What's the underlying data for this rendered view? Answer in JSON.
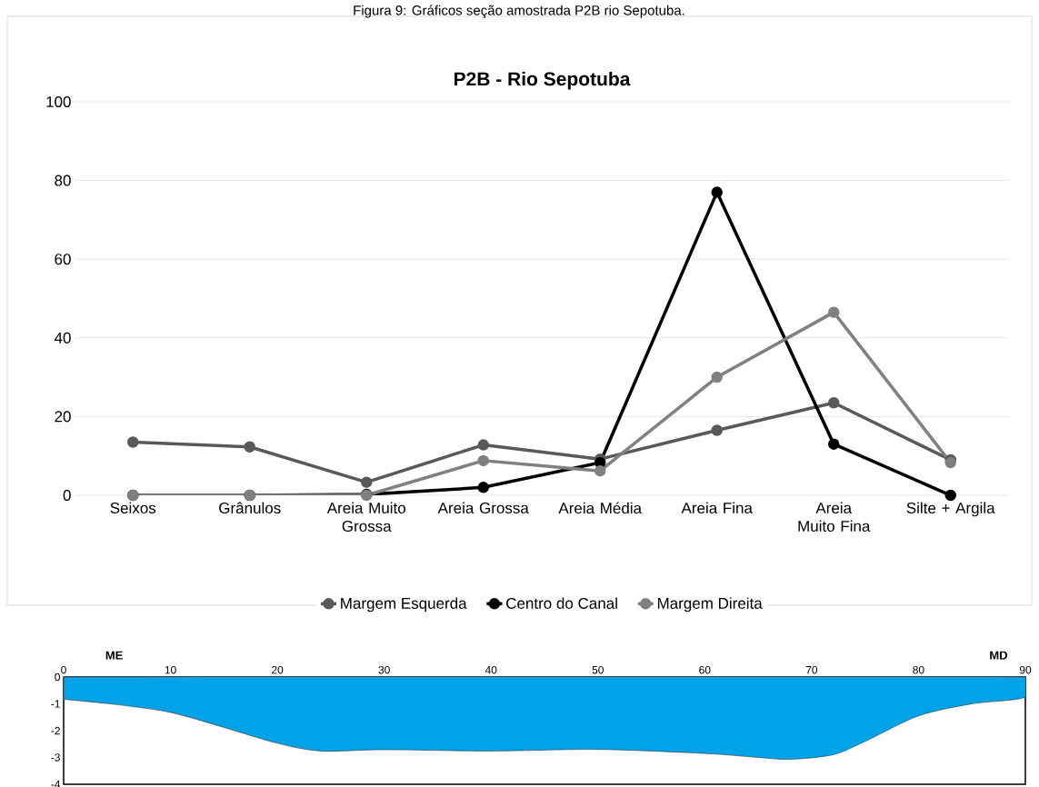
{
  "chart_data": [
    {
      "type": "line",
      "title": "P2B - Rio Sepotuba",
      "annotations": [
        "Figura 9: Gráficos seção amostrada P2B rio Sepotuba."
      ],
      "categories": [
        "Seixos",
        "Grânulos",
        "Areia Muito Grossa",
        "Areia Grossa",
        "Areia Média",
        "Areia Fina",
        "Areia Muito Fina",
        "Silte + Argila"
      ],
      "series": [
        {
          "name": "Margem Esquerda",
          "color": "#595959",
          "values": [
            13.5,
            12.3,
            3.3,
            12.8,
            9.2,
            16.5,
            23.5,
            9.0
          ]
        },
        {
          "name": "Centro do Canal",
          "color": "#000000",
          "values": [
            0,
            0,
            0.2,
            2.0,
            8.3,
            77,
            13,
            0
          ]
        },
        {
          "name": "Margem Direita",
          "color": "#808080",
          "values": [
            0,
            0,
            0,
            8.8,
            6.2,
            30,
            46.5,
            8.3
          ]
        }
      ],
      "ylim": [
        0,
        100
      ],
      "yticks": [
        0,
        20,
        40,
        60,
        80,
        100
      ],
      "grid": "y",
      "legend": "bottom",
      "marker": "circle",
      "line_style": "solid"
    },
    {
      "type": "area",
      "annotations": [
        "ME",
        "MD"
      ],
      "x": [
        0,
        5,
        10,
        15,
        20,
        24,
        30,
        40,
        50,
        60,
        65,
        68,
        72,
        75,
        80,
        85,
        90
      ],
      "values": [
        -0.83,
        -1.03,
        -1.32,
        -1.88,
        -2.47,
        -2.76,
        -2.71,
        -2.76,
        -2.7,
        -2.85,
        -3.0,
        -3.07,
        -2.9,
        -2.4,
        -1.45,
        -1.0,
        -0.75
      ],
      "color": "#00a2e8",
      "xlim": [
        0,
        90
      ],
      "ylim": [
        -4,
        0
      ],
      "xticks": [
        0,
        10,
        20,
        30,
        40,
        50,
        60,
        70,
        80,
        90
      ],
      "yticks": [
        0,
        -1,
        -2,
        -3,
        -4
      ]
    }
  ]
}
